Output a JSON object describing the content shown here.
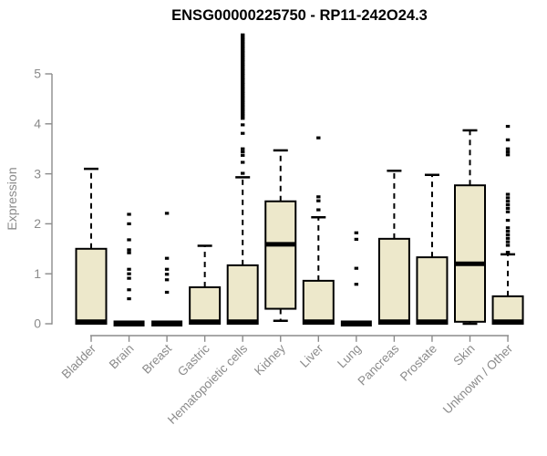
{
  "title": "ENSG00000225750 - RP11-242O24.3",
  "chart_data": {
    "type": "boxplot",
    "title": "ENSG00000225750 - RP11-242O24.3",
    "ylabel": "Expression",
    "xlabel": "",
    "ylim": [
      0,
      5
    ],
    "yticks": [
      "0",
      "1",
      "2",
      "3",
      "4",
      "5"
    ],
    "grid": false,
    "legend": "none",
    "box_fill": "#ede8cb",
    "box_border": "#000000",
    "axis_color": "#8b8b8b",
    "title_color": "#000000",
    "categories": [
      "Bladder",
      "Brain",
      "Breast",
      "Gastric",
      "Hematopoietic cells",
      "Kidney",
      "Liver",
      "Lung",
      "Pancreas",
      "Prostate",
      "Skin",
      "Unknown / Other"
    ],
    "series": [
      {
        "name": "Bladder",
        "q1": 0,
        "median": 0.04,
        "q3": 1.5,
        "whisker_low": 0,
        "whisker_high": 3.1,
        "outliers": []
      },
      {
        "name": "Brain",
        "q1": 0,
        "median": 0.01,
        "q3": 0.02,
        "whisker_low": 0,
        "whisker_high": 0.02,
        "outliers": [
          2.19,
          2.0,
          1.68,
          1.48,
          1.42,
          1.09,
          1.0,
          0.91,
          0.68,
          0.5
        ]
      },
      {
        "name": "Breast",
        "q1": 0,
        "median": 0.01,
        "q3": 0.02,
        "whisker_low": 0,
        "whisker_high": 0.02,
        "outliers": [
          2.21,
          1.31,
          1.09,
          0.99,
          0.88,
          0.63
        ]
      },
      {
        "name": "Gastric",
        "q1": 0,
        "median": 0.04,
        "q3": 0.73,
        "whisker_low": 0,
        "whisker_high": 1.56,
        "outliers": []
      },
      {
        "name": "Hematopoietic cells",
        "q1": 0,
        "median": 0.04,
        "q3": 1.17,
        "whisker_low": 0,
        "whisker_high": 2.93,
        "outliers": [
          5.78,
          5.73,
          5.69,
          5.64,
          5.6,
          5.55,
          5.51,
          5.46,
          5.42,
          5.37,
          5.33,
          5.28,
          5.24,
          5.19,
          5.15,
          5.1,
          5.06,
          5.01,
          4.97,
          4.92,
          4.88,
          4.83,
          4.79,
          4.74,
          4.7,
          4.65,
          4.61,
          4.56,
          4.52,
          4.47,
          4.43,
          4.38,
          4.34,
          4.29,
          4.25,
          4.2,
          4.16,
          4.11,
          3.98,
          3.81,
          3.5,
          3.44,
          3.37,
          3.23,
          3.01
        ]
      },
      {
        "name": "Kidney",
        "q1": 0.3,
        "median": 1.59,
        "q3": 2.45,
        "whisker_low": 0.06,
        "whisker_high": 3.47,
        "outliers": []
      },
      {
        "name": "Liver",
        "q1": 0,
        "median": 0.04,
        "q3": 0.86,
        "whisker_low": 0,
        "whisker_high": 2.13,
        "outliers": [
          3.72,
          2.54,
          2.46,
          2.28
        ]
      },
      {
        "name": "Lung",
        "q1": 0,
        "median": 0.01,
        "q3": 0.02,
        "whisker_low": 0,
        "whisker_high": 0.02,
        "outliers": [
          1.82,
          1.69,
          1.11,
          0.79
        ]
      },
      {
        "name": "Pancreas",
        "q1": 0,
        "median": 0.04,
        "q3": 1.7,
        "whisker_low": 0,
        "whisker_high": 3.06,
        "outliers": []
      },
      {
        "name": "Prostate",
        "q1": 0,
        "median": 0.04,
        "q3": 1.33,
        "whisker_low": 0,
        "whisker_high": 2.98,
        "outliers": []
      },
      {
        "name": "Skin",
        "q1": 0.04,
        "median": 1.2,
        "q3": 2.77,
        "whisker_low": 0,
        "whisker_high": 3.87,
        "outliers": []
      },
      {
        "name": "Unknown / Other",
        "q1": 0,
        "median": 0.04,
        "q3": 0.55,
        "whisker_low": 0,
        "whisker_high": 1.39,
        "outliers": [
          3.95,
          3.68,
          3.5,
          3.44,
          3.38,
          2.59,
          2.52,
          2.45,
          2.38,
          2.31,
          2.24,
          2.07,
          1.92,
          1.85,
          1.78,
          1.71,
          1.64,
          1.57,
          1.43
        ]
      }
    ]
  }
}
